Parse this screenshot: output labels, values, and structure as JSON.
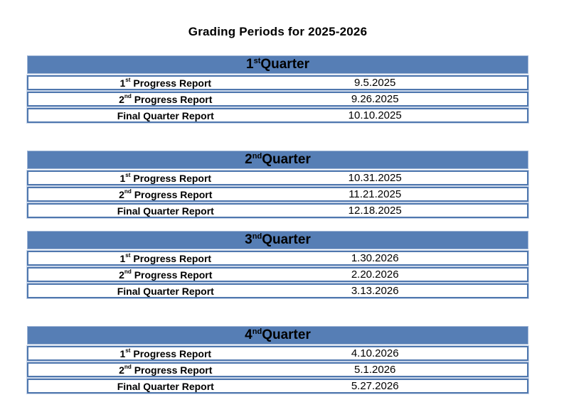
{
  "page": {
    "title": "Grading Periods for 2025-2026"
  },
  "colors": {
    "header_blue": "#567EB5",
    "header_edge": "#9FB5D6",
    "row_border": "#4F77AE",
    "row_halo": "#C8D5E9"
  },
  "tables": [
    {
      "q_num": "1",
      "q_sup": "st",
      "q_word": " Quarter",
      "rows": [
        {
          "num": "1",
          "sup": "st",
          "text": " Progress Report",
          "date": "9.5.2025"
        },
        {
          "num": "2",
          "sup": "nd",
          "text": " Progress Report",
          "date": "9.26.2025"
        },
        {
          "num": "",
          "sup": "",
          "text": "Final Quarter Report",
          "date": "10.10.2025"
        }
      ]
    },
    {
      "q_num": "2",
      "q_sup": "nd",
      "q_word": " Quarter",
      "rows": [
        {
          "num": "1",
          "sup": "st",
          "text": " Progress Report",
          "date": "10.31.2025"
        },
        {
          "num": "2",
          "sup": "nd",
          "text": " Progress Report",
          "date": "11.21.2025"
        },
        {
          "num": "",
          "sup": "",
          "text": "Final Quarter Report",
          "date": "12.18.2025"
        }
      ]
    },
    {
      "q_num": "3",
      "q_sup": "nd",
      "q_word": " Quarter",
      "rows": [
        {
          "num": "1",
          "sup": "st",
          "text": " Progress Report",
          "date": "1.30.2026"
        },
        {
          "num": "2",
          "sup": "nd",
          "text": " Progress Report",
          "date": "2.20.2026"
        },
        {
          "num": "",
          "sup": "",
          "text": "Final Quarter Report",
          "date": "3.13.2026"
        }
      ]
    },
    {
      "q_num": "4",
      "q_sup": "nd",
      "q_word": " Quarter",
      "rows": [
        {
          "num": "1",
          "sup": "st",
          "text": " Progress Report",
          "date": "4.10.2026"
        },
        {
          "num": "2",
          "sup": "nd",
          "text": " Progress Report",
          "date": "5.1.2026"
        },
        {
          "num": "",
          "sup": "",
          "text": "Final Quarter Report",
          "date": "5.27.2026"
        }
      ]
    }
  ]
}
